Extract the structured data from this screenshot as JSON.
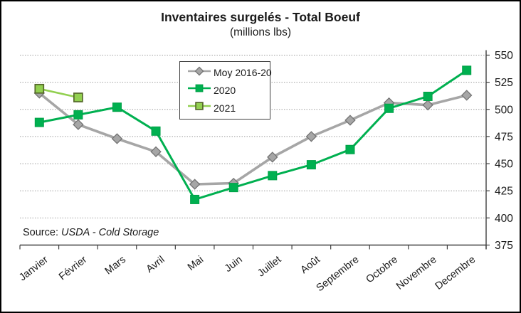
{
  "chart_data": {
    "type": "line",
    "title": "Inventaires surgelés - Total Boeuf",
    "subtitle": "(millions lbs)",
    "categories": [
      "Janvier",
      "Février",
      "Mars",
      "Avril",
      "Mai",
      "Juin",
      "Juillet",
      "Août",
      "Septembre",
      "Octobre",
      "Novembre",
      "Decembre"
    ],
    "series": [
      {
        "name": "Moy 2016-20",
        "color": "#a6a6a6",
        "marker": "diamond",
        "marker_fill": "#a6a6a6",
        "marker_border": "#737373",
        "values": [
          515,
          486,
          473,
          461,
          431,
          432,
          456,
          475,
          490,
          506,
          504,
          513
        ]
      },
      {
        "name": "2020",
        "color": "#00b050",
        "marker": "square",
        "marker_fill": "#00b050",
        "marker_border": "#00a047",
        "values": [
          488,
          495,
          502,
          480,
          417,
          428,
          439,
          449,
          463,
          501,
          512,
          536
        ]
      },
      {
        "name": "2021",
        "color": "#92d050",
        "marker": "square",
        "marker_fill": "#92d050",
        "marker_border": "#55682a",
        "values": [
          519,
          511,
          null,
          null,
          null,
          null,
          null,
          null,
          null,
          null,
          null,
          null
        ]
      }
    ],
    "y_axis": {
      "min": 375,
      "max": 550,
      "step": 25,
      "side": "right",
      "labels": [
        "375",
        "400",
        "425",
        "450",
        "475",
        "500",
        "525",
        "550"
      ]
    },
    "x_axis": {
      "label_rotation_deg": -38
    },
    "grid": "dotted-horizontal",
    "grid_color": "#9e9e9e",
    "axis_color": "#3f3f3f",
    "legend_position": "top-center",
    "source_label": "Source: ",
    "source_value": "USDA - Cold Storage"
  }
}
